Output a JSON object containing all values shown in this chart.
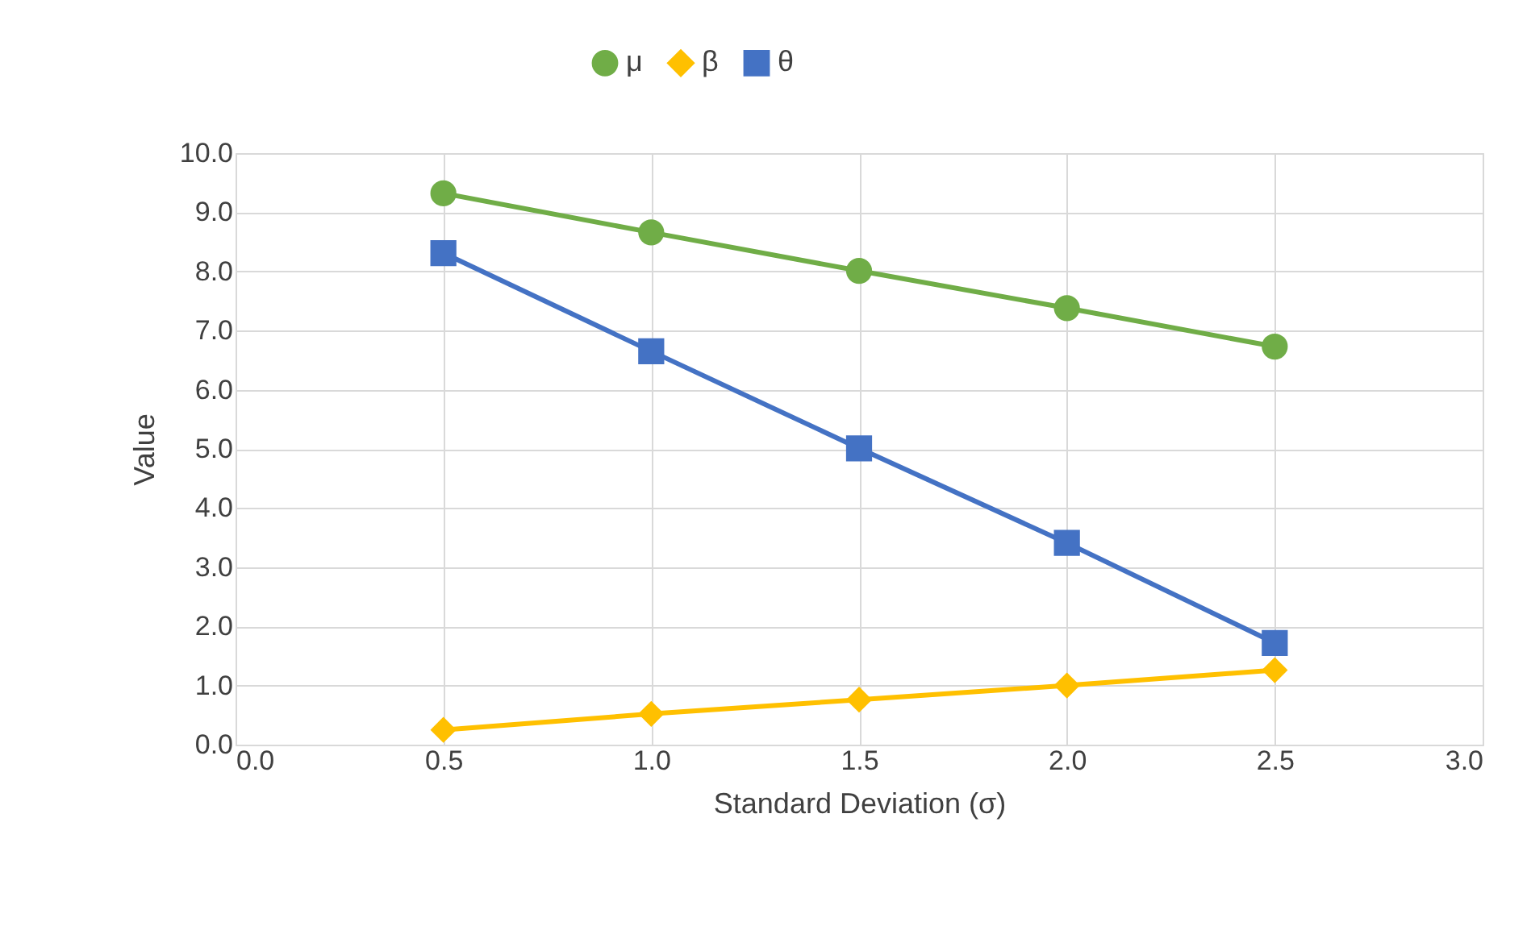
{
  "chart_data": {
    "type": "line",
    "xlabel": "Standard Deviation (σ)",
    "ylabel": "Value",
    "x": [
      0.5,
      1.0,
      1.5,
      2.0,
      2.5
    ],
    "series": [
      {
        "name": "μ",
        "color": "#70ad47",
        "marker": "circle",
        "values": [
          9.32,
          8.66,
          8.01,
          7.38,
          6.73
        ]
      },
      {
        "name": "β",
        "color": "#ffc000",
        "marker": "diamond",
        "values": [
          0.25,
          0.52,
          0.76,
          1.0,
          1.26
        ]
      },
      {
        "name": "θ",
        "color": "#4472c4",
        "marker": "square",
        "values": [
          8.31,
          6.65,
          5.01,
          3.41,
          1.72
        ]
      }
    ],
    "xlim": [
      0,
      3
    ],
    "xticks": [
      {
        "value": 0,
        "label": "0.0"
      },
      {
        "value": 0.5,
        "label": "0.5"
      },
      {
        "value": 1,
        "label": "1.0"
      },
      {
        "value": 1.5,
        "label": "1.5"
      },
      {
        "value": 2,
        "label": "2.0"
      },
      {
        "value": 2.5,
        "label": "2.5"
      },
      {
        "value": 3,
        "label": "3.0"
      }
    ],
    "ylim": [
      0,
      10
    ],
    "yticks": [
      {
        "value": 0,
        "label": "0.0"
      },
      {
        "value": 1,
        "label": "1.0"
      },
      {
        "value": 2,
        "label": "2.0"
      },
      {
        "value": 3,
        "label": "3.0"
      },
      {
        "value": 4,
        "label": "4.0"
      },
      {
        "value": 5,
        "label": "5.0"
      },
      {
        "value": 6,
        "label": "6.0"
      },
      {
        "value": 7,
        "label": "7.0"
      },
      {
        "value": 8,
        "label": "8.0"
      },
      {
        "value": 9,
        "label": "9.0"
      },
      {
        "value": 10,
        "label": "10.0"
      }
    ],
    "grid": true,
    "legend": "top",
    "line_style": "solid"
  }
}
